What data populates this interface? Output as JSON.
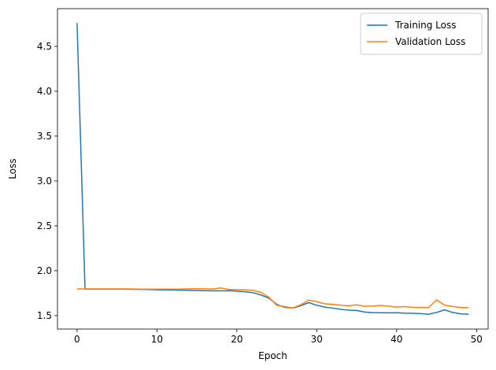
{
  "chart_data": {
    "type": "line",
    "xlabel": "Epoch",
    "ylabel": "Loss",
    "xlim": [
      -2.45,
      51.45
    ],
    "ylim": [
      1.35,
      4.92
    ],
    "xticks": [
      0,
      10,
      20,
      30,
      40,
      50
    ],
    "yticks": [
      1.5,
      2.0,
      2.5,
      3.0,
      3.5,
      4.0,
      4.5
    ],
    "x": [
      0,
      1,
      2,
      3,
      4,
      5,
      6,
      7,
      8,
      9,
      10,
      11,
      12,
      13,
      14,
      15,
      16,
      17,
      18,
      19,
      20,
      21,
      22,
      23,
      24,
      25,
      26,
      27,
      28,
      29,
      30,
      31,
      32,
      33,
      34,
      35,
      36,
      37,
      38,
      39,
      40,
      41,
      42,
      43,
      44,
      45,
      46,
      47,
      48,
      49
    ],
    "series": [
      {
        "name": "Training Loss",
        "color": "#1f77b4",
        "values": [
          4.76,
          1.795,
          1.795,
          1.795,
          1.795,
          1.795,
          1.794,
          1.793,
          1.792,
          1.791,
          1.788,
          1.786,
          1.785,
          1.783,
          1.782,
          1.78,
          1.778,
          1.776,
          1.775,
          1.778,
          1.772,
          1.766,
          1.756,
          1.73,
          1.695,
          1.625,
          1.592,
          1.583,
          1.61,
          1.645,
          1.615,
          1.595,
          1.583,
          1.57,
          1.56,
          1.557,
          1.54,
          1.533,
          1.532,
          1.531,
          1.532,
          1.528,
          1.526,
          1.522,
          1.516,
          1.535,
          1.565,
          1.535,
          1.52,
          1.515
        ]
      },
      {
        "name": "Validation Loss",
        "color": "#ff7f0e",
        "values": [
          1.797,
          1.797,
          1.797,
          1.797,
          1.797,
          1.797,
          1.797,
          1.796,
          1.795,
          1.795,
          1.795,
          1.795,
          1.795,
          1.796,
          1.8,
          1.8,
          1.798,
          1.796,
          1.808,
          1.792,
          1.79,
          1.788,
          1.782,
          1.76,
          1.705,
          1.615,
          1.6,
          1.585,
          1.62,
          1.673,
          1.655,
          1.632,
          1.625,
          1.616,
          1.61,
          1.62,
          1.605,
          1.607,
          1.613,
          1.605,
          1.595,
          1.6,
          1.592,
          1.59,
          1.59,
          1.675,
          1.618,
          1.602,
          1.59,
          1.588
        ]
      }
    ],
    "legend": {
      "position": "top-right"
    },
    "grid": false
  }
}
